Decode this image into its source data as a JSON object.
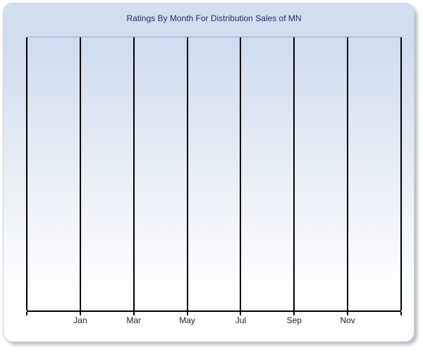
{
  "chart_data": {
    "type": "line",
    "title": "Ratings By Month For Distribution Sales of MN",
    "x_tick_labels": [
      "",
      "Jan",
      "Mar",
      "May",
      "Jul",
      "Sep",
      "Nov",
      ""
    ],
    "visible_categories": [
      "Jan",
      "Mar",
      "May",
      "Jul",
      "Sep",
      "Nov"
    ],
    "series": [],
    "xlabel": "",
    "ylabel": "",
    "y_tick_labels": [],
    "legend": "none",
    "grid": "vertical gridlines only",
    "plot_empty": true
  },
  "colors": {
    "title_text": "#1c3063",
    "axis_and_gridlines": "#000000",
    "plot_top_border": "#9ea9ba",
    "axis_label_text": "#1e1e1e",
    "panel_gradient_top": "#d2dff1",
    "panel_gradient_bottom": "#fefefe",
    "panel_border": "#c6cfdb",
    "page_background": "#ffffff"
  }
}
